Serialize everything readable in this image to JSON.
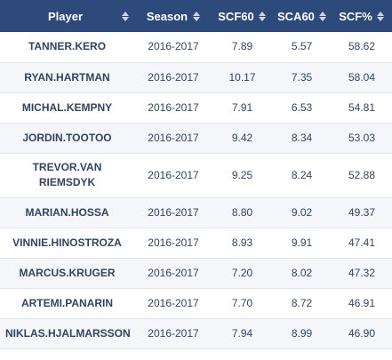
{
  "table": {
    "columns": [
      {
        "label": "Player"
      },
      {
        "label": "Season"
      },
      {
        "label": "SCF60"
      },
      {
        "label": "SCA60"
      },
      {
        "label": "SCF%"
      }
    ],
    "rows": [
      {
        "player": "TANNER.KERO",
        "season": "2016-2017",
        "scf60": "7.89",
        "sca60": "5.57",
        "scf_pct": "58.62"
      },
      {
        "player": "RYAN.HARTMAN",
        "season": "2016-2017",
        "scf60": "10.17",
        "sca60": "7.35",
        "scf_pct": "58.04"
      },
      {
        "player": "MICHAL.KEMPNY",
        "season": "2016-2017",
        "scf60": "7.91",
        "sca60": "6.53",
        "scf_pct": "54.81"
      },
      {
        "player": "JORDIN.TOOTOO",
        "season": "2016-2017",
        "scf60": "9.42",
        "sca60": "8.34",
        "scf_pct": "53.03"
      },
      {
        "player": "TREVOR.VAN RIEMSDYK",
        "season": "2016-2017",
        "scf60": "9.25",
        "sca60": "8.24",
        "scf_pct": "52.88"
      },
      {
        "player": "MARIAN.HOSSA",
        "season": "2016-2017",
        "scf60": "8.80",
        "sca60": "9.02",
        "scf_pct": "49.37"
      },
      {
        "player": "VINNIE.HINOSTROZA",
        "season": "2016-2017",
        "scf60": "8.93",
        "sca60": "9.91",
        "scf_pct": "47.41"
      },
      {
        "player": "MARCUS.KRUGER",
        "season": "2016-2017",
        "scf60": "7.20",
        "sca60": "8.02",
        "scf_pct": "47.32"
      },
      {
        "player": "ARTEMI.PANARIN",
        "season": "2016-2017",
        "scf60": "7.70",
        "sca60": "8.72",
        "scf_pct": "46.91"
      },
      {
        "player": "NIKLAS.HJALMARSSON",
        "season": "2016-2017",
        "scf60": "7.94",
        "sca60": "8.99",
        "scf_pct": "46.90"
      }
    ]
  },
  "theme": {
    "header_bg": "#2e4a7a",
    "header_text": "#ffffff",
    "cell_text": "#33445f"
  },
  "icons": {
    "sort": "sort-both-icon"
  }
}
